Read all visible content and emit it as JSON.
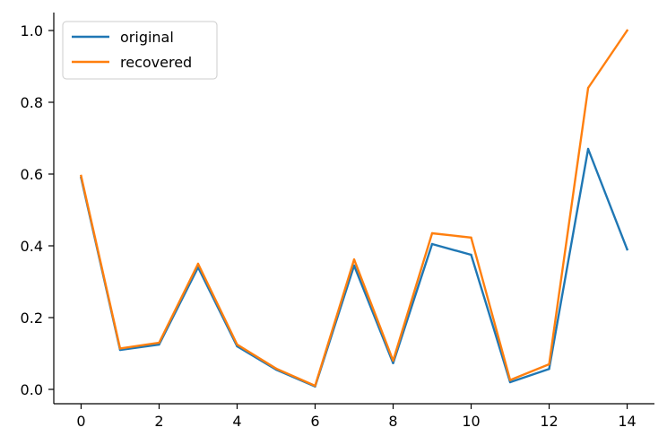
{
  "chart_data": {
    "type": "line",
    "title": "",
    "xlabel": "",
    "ylabel": "",
    "x": [
      0,
      1,
      2,
      3,
      4,
      5,
      6,
      7,
      8,
      9,
      10,
      11,
      12,
      13,
      14
    ],
    "xlim": [
      -0.7,
      14.7
    ],
    "ylim": [
      -0.04,
      1.05
    ],
    "xticks": [
      0,
      2,
      4,
      6,
      8,
      10,
      12,
      14
    ],
    "yticks": [
      0.0,
      0.2,
      0.4,
      0.6,
      0.8,
      1.0
    ],
    "xtick_labels": [
      "0",
      "2",
      "4",
      "6",
      "8",
      "10",
      "12",
      "14"
    ],
    "ytick_labels": [
      "0.0",
      "0.2",
      "0.4",
      "0.6",
      "0.8",
      "1.0"
    ],
    "grid": false,
    "legend_position": "upper-left",
    "series": [
      {
        "name": "original",
        "color": "#1f77b4",
        "values": [
          0.59,
          0.11,
          0.125,
          0.34,
          0.12,
          0.055,
          0.008,
          0.345,
          0.073,
          0.405,
          0.375,
          0.02,
          0.057,
          0.67,
          0.39
        ]
      },
      {
        "name": "recovered",
        "color": "#ff7f0e",
        "values": [
          0.595,
          0.114,
          0.13,
          0.35,
          0.125,
          0.058,
          0.01,
          0.362,
          0.08,
          0.435,
          0.423,
          0.026,
          0.07,
          0.84,
          1.0
        ]
      }
    ]
  }
}
